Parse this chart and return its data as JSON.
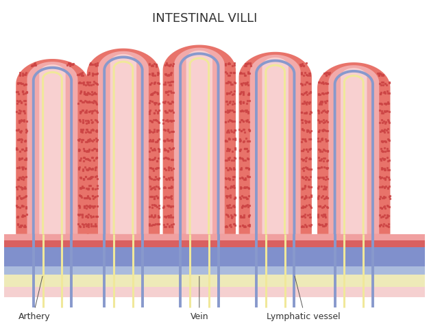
{
  "title": "INTESTINAL VILLI",
  "title_fontsize": 13,
  "title_color": "#333333",
  "bg_color": "#ffffff",
  "colors": {
    "outer_villus": "#E8736A",
    "outer_villus_dark": "#D45A52",
    "inner_villus": "#F2AAAA",
    "core_fill": "#F8D0D0",
    "artery_line": "#F0E89A",
    "vein_line": "#8899CC",
    "dot_color": "#CC4444",
    "base_pink_top": "#F0A0A0",
    "base_red": "#D96060",
    "base_blue": "#8090CC",
    "base_blue2": "#AABBDD",
    "base_cream": "#EEEAB8",
    "base_pink_bot": "#F5D0D0"
  },
  "villi_centers": [
    1.15,
    2.55,
    4.05,
    5.55,
    7.1
  ],
  "villi_tip_heights": [
    8.6,
    8.9,
    9.0,
    8.8,
    8.5
  ],
  "villus_outer_hw": 0.72,
  "villus_inner_hw": 0.5,
  "base_y": 3.6,
  "base_layers": [
    [
      3.6,
      3.42,
      "#F0A0A0"
    ],
    [
      3.42,
      3.22,
      "#D96060"
    ],
    [
      3.22,
      2.68,
      "#8090CC"
    ],
    [
      2.68,
      2.45,
      "#AABBDD"
    ],
    [
      2.45,
      2.1,
      "#EEEAB8"
    ],
    [
      2.1,
      1.8,
      "#F5D0D0"
    ]
  ],
  "label_artery": "Arthery",
  "label_vein": "Vein",
  "label_lymphatic": "Lymphatic vessel",
  "label_fontsize": 9,
  "xlim": [
    0.2,
    8.5
  ],
  "ylim": [
    1.2,
    10.0
  ]
}
